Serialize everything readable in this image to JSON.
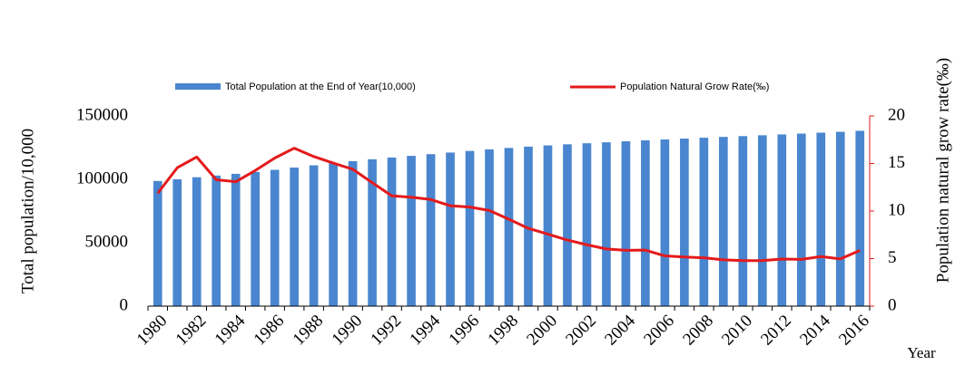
{
  "chart_data": {
    "type": "bar_line",
    "categories": [
      "1980",
      null,
      "1982",
      null,
      "1984",
      null,
      "1986",
      null,
      "1988",
      null,
      "1990",
      null,
      "1992",
      null,
      "1994",
      null,
      "1996",
      null,
      "1998",
      null,
      "2000",
      null,
      "2002",
      null,
      "2004",
      null,
      "2006",
      null,
      "2008",
      null,
      "2010",
      null,
      "2012",
      null,
      "2014",
      null,
      "2016"
    ],
    "series": [
      {
        "name": "Total Population at the End of Year(10,000)",
        "color": "#4a86cf",
        "type": "bar",
        "values": [
          98705,
          100072,
          101654,
          103008,
          104357,
          105851,
          107507,
          109300,
          111026,
          112704,
          114333,
          115823,
          117171,
          118517,
          119850,
          121121,
          122389,
          123626,
          124761,
          125786,
          126743,
          127627,
          128453,
          129227,
          129988,
          130756,
          131448,
          132129,
          132802,
          133450,
          134091,
          134735,
          135404,
          136072,
          136782,
          137462,
          138271
        ]
      },
      {
        "name": "Population Natural Grow Rate(‰)",
        "color": "#e41a1c",
        "type": "line",
        "axis": "y2",
        "values": [
          11.87,
          14.55,
          15.68,
          13.29,
          13.08,
          14.26,
          15.57,
          16.61,
          15.73,
          15.04,
          14.39,
          12.98,
          11.6,
          11.45,
          11.21,
          10.55,
          10.42,
          10.06,
          9.14,
          8.18,
          7.58,
          6.95,
          6.45,
          6.01,
          5.87,
          5.89,
          5.28,
          5.17,
          5.08,
          4.87,
          4.79,
          4.79,
          4.95,
          4.92,
          5.21,
          4.96,
          5.86
        ]
      }
    ],
    "ylabel": "Total population/10,000",
    "y2label": "Population natural grow rate(‰)",
    "xlabel": "Year",
    "ylim": [
      0,
      150000
    ],
    "yticks": [
      0,
      50000,
      100000,
      150000
    ],
    "y2lim": [
      0,
      20
    ],
    "y2ticks": [
      0,
      5,
      10,
      15,
      20
    ],
    "y2color": "#e41a1c"
  }
}
